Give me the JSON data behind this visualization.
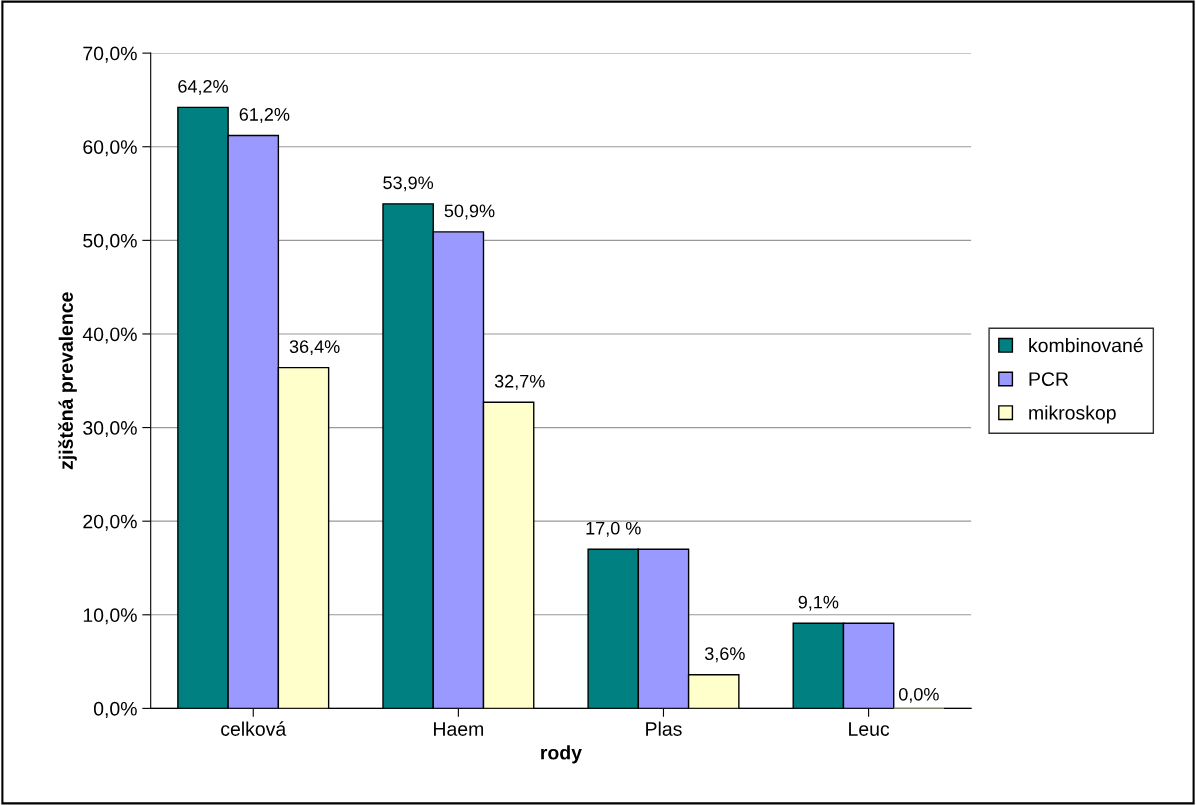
{
  "chart_data": {
    "type": "bar",
    "xlabel": "rody",
    "ylabel": "zjištěná prevalence",
    "categories": [
      "celková",
      "Haem",
      "Plas",
      "Leuc"
    ],
    "series": [
      {
        "name": "kombinované",
        "color": "#008080",
        "values": [
          64.2,
          53.9,
          17.0,
          9.1
        ],
        "value_labels": [
          "64,2%",
          "53,9%",
          "17,0 %",
          "9,1%"
        ]
      },
      {
        "name": "PCR",
        "color": "#9999ff",
        "values": [
          61.2,
          50.9,
          17.0,
          9.1
        ],
        "value_labels": [
          "61,2%",
          "50,9%",
          null,
          null
        ]
      },
      {
        "name": "mikroskop",
        "color": "#ffffcc",
        "values": [
          36.4,
          32.7,
          3.6,
          0.0
        ],
        "value_labels": [
          "36,4%",
          "32,7%",
          "3,6%",
          "0,0%"
        ]
      }
    ],
    "ylim": [
      0,
      70
    ],
    "yticks": [
      {
        "value": 0,
        "label": "0,0%"
      },
      {
        "value": 10,
        "label": "10,0%"
      },
      {
        "value": 20,
        "label": "20,0%"
      },
      {
        "value": 30,
        "label": "30,0%"
      },
      {
        "value": 40,
        "label": "40,0%"
      },
      {
        "value": 50,
        "label": "50,0%"
      },
      {
        "value": 60,
        "label": "60,0%"
      },
      {
        "value": 70,
        "label": "70,0%"
      }
    ],
    "grid": "y",
    "legend": "right"
  }
}
